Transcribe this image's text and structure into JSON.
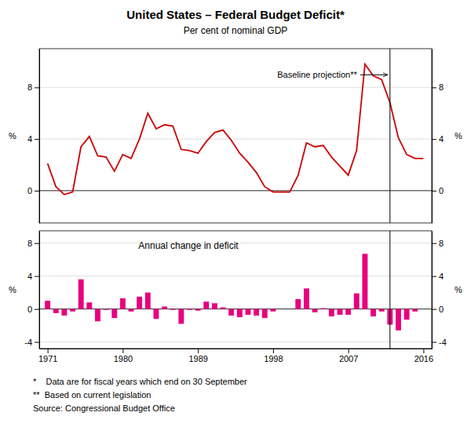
{
  "chart_data": [
    {
      "type": "line",
      "title": "United States – Federal Budget Deficit*",
      "subtitle": "Per cent of nominal GDP",
      "footnotes": [
        "*    Data are for fiscal years which end on 30 September",
        "**  Based on current legislation",
        "Source: Congressional Budget Office"
      ],
      "annotation": "Baseline projection**",
      "x": [
        1971,
        1972,
        1973,
        1974,
        1975,
        1976,
        1977,
        1978,
        1979,
        1980,
        1981,
        1982,
        1983,
        1984,
        1985,
        1986,
        1987,
        1988,
        1989,
        1990,
        1991,
        1992,
        1993,
        1994,
        1995,
        1996,
        1997,
        1998,
        1999,
        2000,
        2001,
        2002,
        2003,
        2004,
        2005,
        2006,
        2007,
        2008,
        2009,
        2010,
        2011,
        2012,
        2013,
        2014,
        2015,
        2016
      ],
      "values": [
        2.1,
        0.3,
        -0.3,
        -0.1,
        3.4,
        4.2,
        2.7,
        2.6,
        1.5,
        2.8,
        2.5,
        4.0,
        6.0,
        4.8,
        5.1,
        5.0,
        3.2,
        3.1,
        2.9,
        3.8,
        4.5,
        4.7,
        3.9,
        2.9,
        2.2,
        1.4,
        0.3,
        -0.1,
        -0.1,
        -0.1,
        1.2,
        3.7,
        3.4,
        3.5,
        2.6,
        1.9,
        1.2,
        3.1,
        9.8,
        8.9,
        8.6,
        6.8,
        4.1,
        2.8,
        2.5,
        2.5
      ],
      "color": "#cc0000",
      "xlim": [
        1970.0,
        2017.0
      ],
      "ylim": [
        -2.5,
        11.0
      ],
      "yticks": [
        0,
        4,
        8
      ],
      "y2lim": [
        -2.5,
        11.0
      ],
      "y2ticks": [
        0,
        4,
        8
      ],
      "y_label": "%",
      "y2_label": "%",
      "reference_x": 2012,
      "reference_y": 0,
      "grid": true,
      "tick_labels": "y"
    },
    {
      "type": "bar",
      "annotation": "Annual change in deficit",
      "x": [
        1971,
        1972,
        1973,
        1974,
        1975,
        1976,
        1977,
        1978,
        1979,
        1980,
        1981,
        1982,
        1983,
        1984,
        1985,
        1986,
        1987,
        1988,
        1989,
        1990,
        1991,
        1992,
        1993,
        1994,
        1995,
        1996,
        1997,
        1998,
        1999,
        2000,
        2001,
        2002,
        2003,
        2004,
        2005,
        2006,
        2007,
        2008,
        2009,
        2010,
        2011,
        2012,
        2013,
        2014,
        2015,
        2016
      ],
      "values": [
        1.0,
        -0.5,
        -0.8,
        -0.3,
        3.6,
        0.8,
        -1.5,
        -0.1,
        -1.1,
        1.3,
        -0.3,
        1.5,
        2.0,
        -1.2,
        0.3,
        -0.1,
        -1.8,
        -0.1,
        -0.2,
        0.9,
        0.7,
        0.2,
        -0.8,
        -1.0,
        -0.7,
        -0.8,
        -1.1,
        -0.3,
        0.0,
        0.0,
        1.2,
        2.5,
        -0.4,
        0.1,
        -0.9,
        -0.7,
        -0.7,
        1.9,
        6.7,
        -0.9,
        -0.3,
        -1.9,
        -2.6,
        -1.3,
        -0.3,
        0.0
      ],
      "color": "#e8007f",
      "xlim": [
        1970.0,
        2017.0
      ],
      "xticks": [
        1971,
        1980,
        1989,
        1998,
        2007,
        2016
      ],
      "ylim": [
        -4.8,
        9.5
      ],
      "yticks": [
        -4,
        0,
        4,
        8
      ],
      "y2lim": [
        -4.8,
        9.5
      ],
      "y2ticks": [
        -4,
        0,
        4,
        8
      ],
      "y_label": "%",
      "y2_label": "%",
      "reference_x": 2012,
      "reference_y": 0,
      "grid": true
    }
  ]
}
